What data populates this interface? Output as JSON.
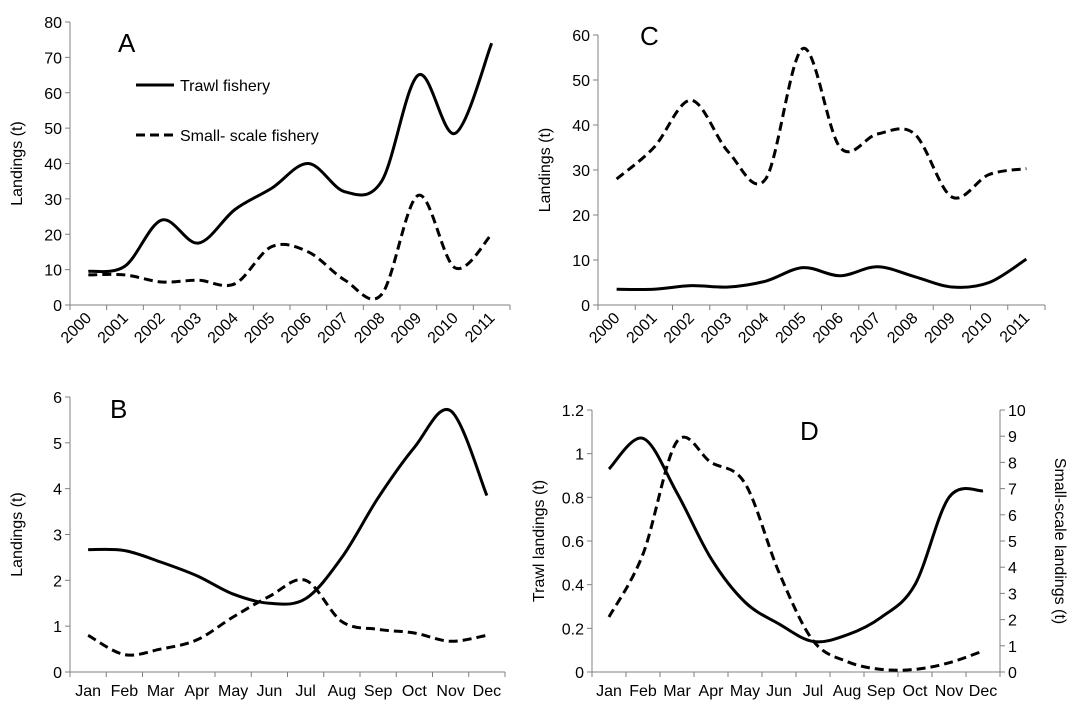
{
  "chart_data": [
    {
      "type": "line",
      "label": "A",
      "y_label": "Landings (t)",
      "legend": "upper left",
      "categories": [
        "2000",
        "2001",
        "2002",
        "2003",
        "2004",
        "2005",
        "2006",
        "2007",
        "2008",
        "2009",
        "2010",
        "2011"
      ],
      "ylim": [
        0,
        80
      ],
      "yticks": [
        0,
        10,
        20,
        30,
        40,
        50,
        60,
        70,
        80
      ],
      "series": [
        {
          "name": "Trawl fishery",
          "color": "#000000",
          "dash": false,
          "values": [
            9.5,
            11,
            24,
            17.5,
            27,
            33,
            40,
            32,
            35,
            65,
            48.5,
            74
          ]
        },
        {
          "name": "Small- scale fishery",
          "color": "#000000",
          "dash": true,
          "values": [
            8.5,
            8.5,
            6.5,
            7,
            6,
            16.5,
            15,
            7,
            3,
            31,
            10.5,
            20
          ]
        }
      ]
    },
    {
      "type": "line",
      "label": "C",
      "y_label": "Landings (t)",
      "categories": [
        "2000",
        "2001",
        "2002",
        "2003",
        "2004",
        "2005",
        "2006",
        "2007",
        "2008",
        "2009",
        "2010",
        "2011"
      ],
      "ylim": [
        0,
        60
      ],
      "yticks": [
        0,
        10,
        20,
        30,
        40,
        50,
        60
      ],
      "series": [
        {
          "color": "#000000",
          "dash": false,
          "values": [
            3.5,
            3.5,
            4.3,
            4,
            5.3,
            8.3,
            6.5,
            8.5,
            6.3,
            4,
            5,
            10.2
          ]
        },
        {
          "color": "#000000",
          "dash": true,
          "values": [
            28,
            35,
            45.5,
            34,
            28,
            57,
            35,
            38,
            38,
            24,
            29,
            30.3
          ]
        }
      ]
    },
    {
      "type": "line",
      "label": "B",
      "y_label": "Landings (t)",
      "categories": [
        "Jan",
        "Feb",
        "Mar",
        "Apr",
        "May",
        "Jun",
        "Jul",
        "Aug",
        "Sep",
        "Oct",
        "Nov",
        "Dec"
      ],
      "ylim": [
        0,
        6
      ],
      "yticks": [
        0,
        1,
        2,
        3,
        4,
        5,
        6
      ],
      "series": [
        {
          "color": "#000000",
          "dash": false,
          "values": [
            2.67,
            2.65,
            2.4,
            2.1,
            1.7,
            1.5,
            1.6,
            2.5,
            3.8,
            4.9,
            5.7,
            3.85
          ]
        },
        {
          "color": "#000000",
          "dash": true,
          "values": [
            0.8,
            0.38,
            0.5,
            0.7,
            1.2,
            1.65,
            2.0,
            1.1,
            0.93,
            0.85,
            0.67,
            0.8
          ]
        }
      ]
    },
    {
      "type": "line",
      "label": "D",
      "y_label": "Trawl landings (t)",
      "y2_label": "Small-scale landings (t)",
      "categories": [
        "Jan",
        "Feb",
        "Mar",
        "Apr",
        "May",
        "Jun",
        "Jul",
        "Aug",
        "Sep",
        "Oct",
        "Nov",
        "Dec"
      ],
      "ylim": [
        0,
        1.2
      ],
      "yticks": [
        0,
        0.2,
        0.4,
        0.6,
        0.8,
        1,
        1.2
      ],
      "y2lim": [
        0,
        10
      ],
      "y2ticks": [
        0,
        1,
        2,
        3,
        4,
        5,
        6,
        7,
        8,
        9,
        10
      ],
      "series": [
        {
          "color": "#000000",
          "dash": false,
          "values": [
            0.93,
            1.07,
            0.82,
            0.52,
            0.32,
            0.22,
            0.14,
            0.17,
            0.25,
            0.4,
            0.8,
            0.83
          ]
        },
        {
          "color": "#000000",
          "dash": true,
          "axis": "y2",
          "values": [
            2.1,
            4.5,
            8.8,
            8.0,
            7.2,
            3.8,
            1.2,
            0.4,
            0.1,
            0.1,
            0.35,
            0.8
          ]
        }
      ]
    }
  ]
}
